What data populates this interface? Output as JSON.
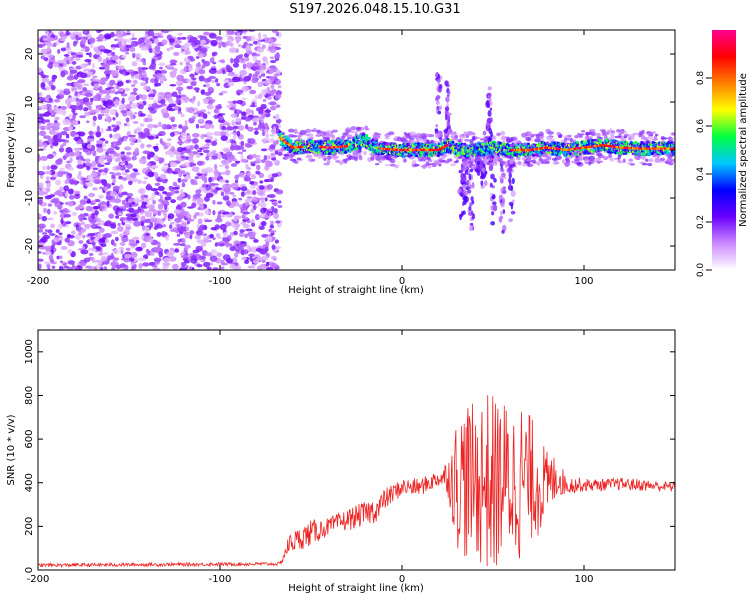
{
  "figure": {
    "title": "S197.2026.048.15.10.G31"
  },
  "chart_data": [
    {
      "type": "heatmap",
      "title": "",
      "xlabel": "Height of straight line (km)",
      "ylabel": "Frequency (Hz)",
      "xlim": [
        -200,
        150
      ],
      "ylim": [
        -25,
        25
      ],
      "xticks": [
        -200,
        -100,
        0,
        100
      ],
      "xtick_labels": [
        "-200",
        "-100",
        "0",
        "100"
      ],
      "yticks": [
        -20,
        -10,
        0,
        10,
        20
      ],
      "ytick_labels": [
        "-20",
        "-10",
        "0",
        "10",
        "20"
      ],
      "colorbar": {
        "label": "Normalized spectral amplitude",
        "range": [
          0.0,
          1.0
        ],
        "ticks": [
          0.0,
          0.2,
          0.4,
          0.6,
          0.8
        ],
        "tick_labels": [
          "0.0",
          "0.2",
          "0.4",
          "0.6",
          "0.8"
        ],
        "colors": [
          "#ffffff",
          "#cc88ff",
          "#6a00ff",
          "#0000ff",
          "#00c8ff",
          "#00ff40",
          "#ffff00",
          "#ff8000",
          "#ff0000",
          "#ff0090"
        ]
      },
      "regions": {
        "noise_region_x": [
          -200,
          -67
        ],
        "noise_frequency_range": [
          -25,
          25
        ],
        "signal_center_frequency": 0.5,
        "vertical_features_x": [
          20,
          25,
          33,
          35,
          38,
          42,
          45,
          48,
          50,
          55,
          60
        ],
        "strong_segments_x": [
          [
            -67,
            -55
          ],
          [
            -45,
            -30
          ],
          [
            -12,
            5
          ],
          [
            5,
            25
          ],
          [
            60,
            150
          ]
        ]
      },
      "centerline": {
        "x": [
          -67,
          -60,
          -50,
          -40,
          -30,
          -20,
          -15,
          -10,
          0,
          10,
          20,
          25,
          30,
          40,
          50,
          60,
          70,
          80,
          90,
          100,
          110,
          120,
          130,
          140,
          150
        ],
        "y": [
          2.5,
          0.5,
          0.8,
          0.5,
          0.8,
          2.0,
          0.5,
          0.2,
          0.0,
          0.0,
          0.0,
          1.0,
          0.0,
          0.0,
          0.5,
          0.0,
          0.0,
          0.5,
          0.0,
          0.5,
          1.0,
          0.5,
          0.3,
          0.3,
          0.3
        ]
      }
    },
    {
      "type": "line",
      "title": "",
      "xlabel": "Height of straight line (km)",
      "ylabel": "SNR (10 * v/v)",
      "xlim": [
        -200,
        150
      ],
      "ylim": [
        0,
        1100
      ],
      "xticks": [
        -200,
        -100,
        0,
        100
      ],
      "xtick_labels": [
        "-200",
        "-100",
        "0",
        "100"
      ],
      "yticks": [
        0,
        200,
        400,
        600,
        800,
        1000
      ],
      "ytick_labels": [
        "0",
        "200",
        "400",
        "600",
        "800",
        "1000"
      ],
      "color": "#ee2222",
      "series": [
        {
          "name": "SNR",
          "envelope_x": [
            -200,
            -67,
            -62,
            -50,
            -40,
            -30,
            -20,
            -13,
            -10,
            0,
            10,
            20,
            25,
            30,
            35,
            40,
            45,
            50,
            55,
            60,
            65,
            70,
            75,
            80,
            85,
            90,
            100,
            110,
            120,
            130,
            140,
            150
          ],
          "envelope_y": [
            22,
            28,
            120,
            170,
            200,
            230,
            260,
            280,
            320,
            380,
            380,
            420,
            430,
            400,
            420,
            400,
            420,
            380,
            420,
            400,
            420,
            420,
            400,
            380,
            430,
            390,
            390,
            390,
            395,
            390,
            385,
            380
          ],
          "spread": [
            8,
            8,
            45,
            60,
            40,
            50,
            55,
            60,
            50,
            40,
            40,
            40,
            80,
            300,
            380,
            350,
            420,
            430,
            380,
            350,
            380,
            300,
            250,
            160,
            100,
            45,
            30,
            28,
            28,
            28,
            25,
            25
          ]
        }
      ]
    }
  ]
}
